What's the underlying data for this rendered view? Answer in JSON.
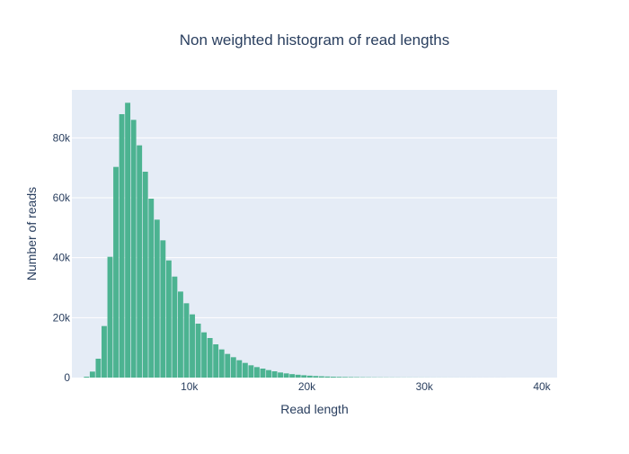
{
  "chart_data": {
    "type": "bar",
    "title": "Non weighted histogram of read lengths",
    "xlabel": "Read length",
    "ylabel": "Number of reads",
    "xlim": [
      0,
      41300
    ],
    "ylim": [
      0,
      96000
    ],
    "grid": true,
    "x_ticks": [
      {
        "value": 10000,
        "label": "10k"
      },
      {
        "value": 20000,
        "label": "20k"
      },
      {
        "value": 30000,
        "label": "30k"
      },
      {
        "value": 40000,
        "label": "40k"
      }
    ],
    "y_ticks": [
      {
        "value": 0,
        "label": "0"
      },
      {
        "value": 20000,
        "label": "20k"
      },
      {
        "value": 40000,
        "label": "40k"
      },
      {
        "value": 60000,
        "label": "60k"
      },
      {
        "value": 80000,
        "label": "80k"
      }
    ],
    "bin_width": 500,
    "bin_starts": [
      1000,
      1500,
      2000,
      2500,
      3000,
      3500,
      4000,
      4500,
      5000,
      5500,
      6000,
      6500,
      7000,
      7500,
      8000,
      8500,
      9000,
      9500,
      10000,
      10500,
      11000,
      11500,
      12000,
      12500,
      13000,
      13500,
      14000,
      14500,
      15000,
      15500,
      16000,
      16500,
      17000,
      17500,
      18000,
      18500,
      19000,
      19500,
      20000,
      20500,
      21000,
      21500,
      22000,
      22500,
      23000,
      23500,
      24000,
      24500,
      25000,
      25500,
      26000,
      26500,
      27000,
      27500,
      28000,
      28500,
      29000,
      29500,
      30000,
      30500,
      31000,
      31500,
      32000,
      32500,
      33000,
      33500,
      34000,
      34500,
      35000,
      35500,
      36000,
      36500,
      37000,
      37500,
      38000,
      38500,
      39000,
      39500,
      40000
    ],
    "values": [
      300,
      2000,
      6300,
      17200,
      40300,
      70300,
      87900,
      91700,
      86000,
      77500,
      68700,
      59700,
      52700,
      45800,
      39100,
      33700,
      28700,
      24800,
      21100,
      18000,
      15100,
      13200,
      11100,
      9400,
      7900,
      6800,
      5800,
      4900,
      4100,
      3500,
      3000,
      2500,
      2100,
      1700,
      1400,
      1150,
      950,
      780,
      640,
      520,
      430,
      350,
      290,
      240,
      200,
      170,
      140,
      115,
      95,
      80,
      68,
      58,
      50,
      43,
      37,
      32,
      28,
      24,
      21,
      18,
      16,
      14,
      12,
      11,
      10,
      9,
      8,
      7,
      6,
      6,
      5,
      5,
      4,
      4,
      3,
      3,
      3,
      2,
      2
    ],
    "colors": {
      "bar": "#4cb391",
      "plot_bg": "#e5ecf6",
      "grid": "#ffffff",
      "text": "#2a3f5f"
    }
  }
}
